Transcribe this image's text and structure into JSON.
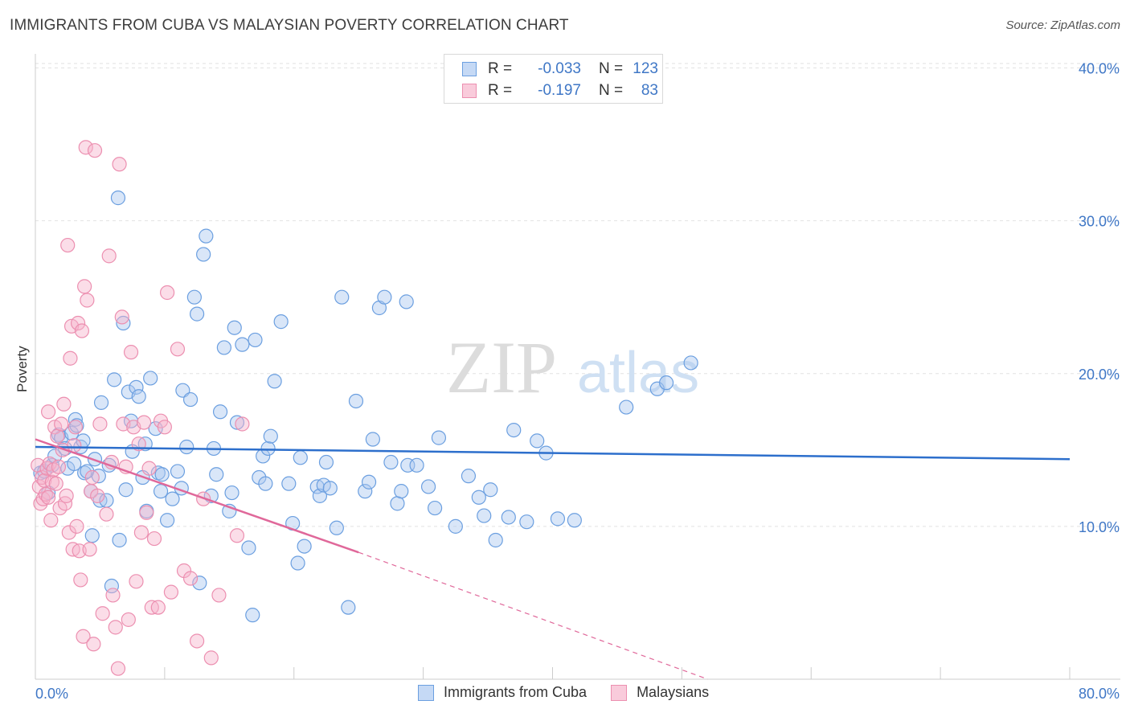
{
  "header": {
    "title": "IMMIGRANTS FROM CUBA VS MALAYSIAN POVERTY CORRELATION CHART",
    "source": "Source: ZipAtlas.com"
  },
  "watermark": {
    "zip": "ZIP",
    "atlas": "atlas"
  },
  "legend": {
    "rows": [
      {
        "r_label": "R =",
        "r_value": "-0.033",
        "n_label": "N =",
        "n_value": "123",
        "color": "#6b9fe0"
      },
      {
        "r_label": "R =",
        "r_value": "-0.197",
        "n_label": "N =",
        "n_value": "83",
        "color": "#ec8fb0"
      }
    ]
  },
  "bottom_legend": [
    {
      "label": "Immigrants from Cuba",
      "color": "#6b9fe0"
    },
    {
      "label": "Malaysians",
      "color": "#ec8fb0"
    }
  ],
  "chart_data": {
    "type": "scatter",
    "title": "IMMIGRANTS FROM CUBA VS MALAYSIAN POVERTY CORRELATION CHART",
    "xlabel": "",
    "ylabel": "Poverty",
    "xlim": [
      0,
      80
    ],
    "ylim": [
      0,
      40.5
    ],
    "x_tick_labels": [
      "0.0%",
      "80.0%"
    ],
    "y_ticks": [
      10,
      20,
      30,
      40
    ],
    "y_tick_labels": [
      "10.0%",
      "20.0%",
      "30.0%",
      "40.0%"
    ],
    "grid": true,
    "series": [
      {
        "name": "Immigrants from Cuba",
        "color": "#6b9fe0",
        "line_color": "#2d6fcc",
        "trend": {
          "x": [
            0,
            80
          ],
          "y": [
            15.2,
            14.4
          ]
        },
        "points": [
          [
            0.4,
            13.5
          ],
          [
            0.7,
            13.6
          ],
          [
            1.0,
            12.2
          ],
          [
            1.3,
            14.0
          ],
          [
            1.5,
            14.6
          ],
          [
            1.8,
            16.0
          ],
          [
            2.0,
            15.8
          ],
          [
            2.3,
            15.1
          ],
          [
            2.5,
            13.8
          ],
          [
            2.8,
            16.1
          ],
          [
            3.0,
            14.1
          ],
          [
            3.1,
            17.0
          ],
          [
            3.2,
            16.6
          ],
          [
            3.5,
            15.2
          ],
          [
            3.7,
            15.6
          ],
          [
            3.8,
            13.5
          ],
          [
            4.0,
            13.6
          ],
          [
            4.3,
            12.3
          ],
          [
            4.4,
            9.4
          ],
          [
            4.6,
            14.4
          ],
          [
            4.9,
            13.3
          ],
          [
            5.0,
            11.7
          ],
          [
            5.1,
            18.1
          ],
          [
            5.5,
            11.7
          ],
          [
            5.7,
            14.0
          ],
          [
            5.9,
            6.1
          ],
          [
            6.1,
            19.6
          ],
          [
            6.4,
            31.5
          ],
          [
            6.5,
            9.1
          ],
          [
            6.8,
            23.3
          ],
          [
            7.0,
            12.4
          ],
          [
            7.2,
            18.8
          ],
          [
            7.4,
            16.9
          ],
          [
            7.5,
            14.9
          ],
          [
            7.8,
            19.1
          ],
          [
            8.0,
            18.5
          ],
          [
            8.3,
            13.2
          ],
          [
            8.5,
            15.4
          ],
          [
            8.6,
            11.0
          ],
          [
            8.9,
            19.7
          ],
          [
            9.3,
            16.4
          ],
          [
            9.5,
            13.5
          ],
          [
            9.7,
            12.3
          ],
          [
            9.8,
            13.4
          ],
          [
            10.2,
            10.4
          ],
          [
            10.6,
            11.8
          ],
          [
            11.0,
            13.6
          ],
          [
            11.3,
            12.5
          ],
          [
            11.4,
            18.9
          ],
          [
            11.7,
            15.2
          ],
          [
            12.0,
            18.3
          ],
          [
            12.3,
            25.0
          ],
          [
            12.5,
            23.9
          ],
          [
            12.7,
            6.3
          ],
          [
            13.0,
            27.8
          ],
          [
            13.2,
            29.0
          ],
          [
            13.6,
            12.0
          ],
          [
            13.8,
            15.1
          ],
          [
            14.0,
            13.4
          ],
          [
            14.3,
            17.5
          ],
          [
            14.6,
            21.7
          ],
          [
            15.0,
            11.0
          ],
          [
            15.2,
            12.2
          ],
          [
            15.4,
            23.0
          ],
          [
            15.6,
            16.8
          ],
          [
            16.0,
            21.9
          ],
          [
            16.5,
            8.6
          ],
          [
            16.8,
            4.2
          ],
          [
            17.0,
            22.2
          ],
          [
            17.3,
            13.2
          ],
          [
            17.6,
            14.6
          ],
          [
            17.8,
            12.8
          ],
          [
            18.0,
            15.1
          ],
          [
            18.2,
            15.9
          ],
          [
            18.5,
            19.5
          ],
          [
            19.0,
            23.4
          ],
          [
            19.6,
            12.8
          ],
          [
            19.9,
            10.2
          ],
          [
            20.3,
            7.6
          ],
          [
            20.5,
            14.5
          ],
          [
            20.8,
            8.7
          ],
          [
            21.8,
            12.6
          ],
          [
            22.0,
            12.0
          ],
          [
            22.3,
            12.7
          ],
          [
            22.5,
            14.2
          ],
          [
            22.8,
            12.5
          ],
          [
            23.3,
            9.9
          ],
          [
            23.7,
            25.0
          ],
          [
            24.2,
            4.7
          ],
          [
            24.8,
            18.2
          ],
          [
            25.5,
            12.3
          ],
          [
            25.8,
            12.9
          ],
          [
            26.1,
            15.7
          ],
          [
            26.6,
            24.3
          ],
          [
            27.0,
            25.0
          ],
          [
            27.5,
            14.2
          ],
          [
            28.0,
            11.5
          ],
          [
            28.3,
            12.3
          ],
          [
            28.7,
            24.7
          ],
          [
            28.8,
            14.0
          ],
          [
            29.5,
            14.0
          ],
          [
            30.4,
            12.6
          ],
          [
            30.9,
            11.2
          ],
          [
            31.2,
            15.8
          ],
          [
            32.5,
            10.0
          ],
          [
            33.5,
            13.3
          ],
          [
            34.3,
            11.9
          ],
          [
            34.7,
            10.7
          ],
          [
            35.2,
            12.4
          ],
          [
            35.6,
            9.1
          ],
          [
            36.6,
            10.6
          ],
          [
            37.0,
            16.3
          ],
          [
            38.0,
            10.3
          ],
          [
            38.8,
            15.6
          ],
          [
            39.5,
            14.8
          ],
          [
            40.4,
            10.5
          ],
          [
            41.7,
            10.4
          ],
          [
            45.7,
            17.8
          ],
          [
            48.1,
            19.0
          ],
          [
            48.8,
            19.4
          ],
          [
            50.7,
            20.7
          ]
        ]
      },
      {
        "name": "Malaysians",
        "color": "#ec8fb0",
        "line_color": "#e0689a",
        "trend": {
          "x": [
            0,
            25
          ],
          "y": [
            15.7,
            8.3
          ]
        },
        "trend_dashed": {
          "x": [
            25,
            52
          ],
          "y": [
            8.3,
            0.0
          ]
        },
        "points": [
          [
            0.2,
            14.0
          ],
          [
            0.3,
            12.6
          ],
          [
            0.4,
            11.5
          ],
          [
            0.5,
            13.2
          ],
          [
            0.6,
            11.8
          ],
          [
            0.7,
            13.0
          ],
          [
            0.8,
            12.1
          ],
          [
            0.9,
            13.8
          ],
          [
            1.0,
            11.9
          ],
          [
            1.0,
            17.5
          ],
          [
            1.1,
            14.1
          ],
          [
            1.2,
            10.4
          ],
          [
            1.3,
            12.9
          ],
          [
            1.4,
            13.7
          ],
          [
            1.5,
            16.5
          ],
          [
            1.6,
            12.8
          ],
          [
            1.7,
            15.9
          ],
          [
            1.8,
            13.9
          ],
          [
            1.9,
            11.2
          ],
          [
            2.0,
            16.7
          ],
          [
            2.1,
            15.0
          ],
          [
            2.2,
            18.0
          ],
          [
            2.3,
            11.5
          ],
          [
            2.4,
            12.0
          ],
          [
            2.5,
            28.4
          ],
          [
            2.6,
            9.6
          ],
          [
            2.7,
            21.0
          ],
          [
            2.8,
            23.1
          ],
          [
            2.9,
            8.5
          ],
          [
            3.0,
            15.3
          ],
          [
            3.1,
            16.5
          ],
          [
            3.2,
            10.0
          ],
          [
            3.3,
            23.3
          ],
          [
            3.4,
            8.4
          ],
          [
            3.5,
            6.5
          ],
          [
            3.6,
            22.8
          ],
          [
            3.7,
            2.8
          ],
          [
            3.8,
            25.7
          ],
          [
            3.9,
            34.8
          ],
          [
            4.0,
            24.8
          ],
          [
            4.2,
            8.5
          ],
          [
            4.3,
            12.3
          ],
          [
            4.4,
            13.2
          ],
          [
            4.5,
            2.3
          ],
          [
            4.6,
            34.6
          ],
          [
            4.8,
            12.0
          ],
          [
            5.0,
            16.7
          ],
          [
            5.2,
            4.3
          ],
          [
            5.5,
            10.8
          ],
          [
            5.7,
            27.7
          ],
          [
            5.9,
            14.2
          ],
          [
            6.0,
            5.5
          ],
          [
            6.2,
            3.4
          ],
          [
            6.4,
            0.7
          ],
          [
            6.5,
            33.7
          ],
          [
            6.7,
            23.7
          ],
          [
            6.8,
            16.7
          ],
          [
            7.0,
            13.9
          ],
          [
            7.2,
            3.9
          ],
          [
            7.4,
            21.4
          ],
          [
            7.6,
            16.5
          ],
          [
            7.8,
            6.4
          ],
          [
            8.0,
            15.4
          ],
          [
            8.2,
            9.6
          ],
          [
            8.4,
            16.8
          ],
          [
            8.6,
            10.9
          ],
          [
            8.8,
            13.8
          ],
          [
            9.0,
            4.7
          ],
          [
            9.2,
            9.2
          ],
          [
            9.5,
            4.7
          ],
          [
            9.7,
            16.9
          ],
          [
            10.0,
            16.5
          ],
          [
            10.2,
            25.3
          ],
          [
            10.5,
            5.7
          ],
          [
            11.0,
            21.6
          ],
          [
            11.5,
            7.1
          ],
          [
            12.0,
            6.6
          ],
          [
            12.5,
            2.5
          ],
          [
            13.0,
            11.8
          ],
          [
            13.6,
            1.4
          ],
          [
            14.2,
            5.5
          ],
          [
            15.6,
            9.4
          ],
          [
            16.0,
            16.7
          ]
        ]
      }
    ]
  }
}
